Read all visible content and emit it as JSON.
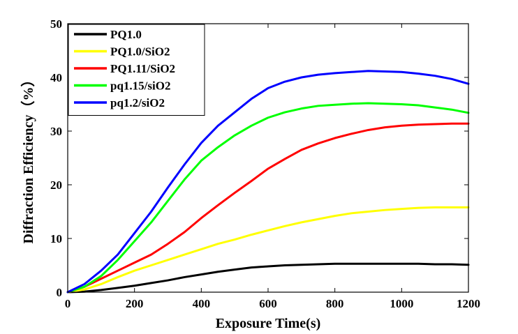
{
  "chart_data": {
    "type": "line",
    "title": "",
    "xlabel": "Exposure Time(s)",
    "ylabel": "Diffraction Efficiency（%）",
    "xlim": [
      0,
      1200
    ],
    "ylim": [
      0,
      50
    ],
    "xticks": [
      0,
      200,
      400,
      600,
      800,
      1000,
      1200
    ],
    "yticks": [
      0,
      10,
      20,
      30,
      40,
      50
    ],
    "grid": false,
    "legend_position": "top-left",
    "x": [
      0,
      50,
      100,
      150,
      200,
      250,
      300,
      350,
      400,
      450,
      500,
      550,
      600,
      650,
      700,
      750,
      800,
      850,
      900,
      950,
      1000,
      1050,
      1100,
      1150,
      1200
    ],
    "series": [
      {
        "name": "PQ1.0",
        "color": "#000000",
        "values": [
          0,
          0.1,
          0.4,
          0.8,
          1.2,
          1.7,
          2.2,
          2.8,
          3.3,
          3.8,
          4.2,
          4.6,
          4.8,
          5.0,
          5.1,
          5.2,
          5.3,
          5.3,
          5.3,
          5.3,
          5.3,
          5.3,
          5.2,
          5.2,
          5.1
        ]
      },
      {
        "name": "PQ1.0/SiO2",
        "color": "#ffff00",
        "values": [
          0,
          0.5,
          1.5,
          2.8,
          4.0,
          5.0,
          6.0,
          7.0,
          8.0,
          9.0,
          9.8,
          10.7,
          11.5,
          12.3,
          13.0,
          13.6,
          14.2,
          14.7,
          15.0,
          15.3,
          15.5,
          15.7,
          15.8,
          15.8,
          15.8
        ]
      },
      {
        "name": "PQ1.11/SiO2",
        "color": "#ff0000",
        "values": [
          0,
          1.0,
          2.5,
          4.0,
          5.5,
          7.0,
          9.0,
          11.2,
          13.8,
          16.2,
          18.5,
          20.7,
          23.0,
          24.8,
          26.5,
          27.7,
          28.7,
          29.5,
          30.2,
          30.7,
          31.0,
          31.2,
          31.3,
          31.4,
          31.4
        ]
      },
      {
        "name": "pq1.15/siO2",
        "color": "#00ff00",
        "values": [
          0,
          1.0,
          3.0,
          6.0,
          9.5,
          13.0,
          17.0,
          21.0,
          24.5,
          27.0,
          29.2,
          31.0,
          32.5,
          33.5,
          34.2,
          34.7,
          34.9,
          35.1,
          35.2,
          35.1,
          35.0,
          34.8,
          34.4,
          34.0,
          33.4
        ]
      },
      {
        "name": "pq1.2/siO2",
        "color": "#0000ff",
        "values": [
          0,
          1.5,
          4.0,
          7.0,
          11.0,
          15.0,
          19.5,
          23.8,
          27.8,
          31.0,
          33.5,
          36.0,
          38.0,
          39.2,
          40.0,
          40.5,
          40.8,
          41.0,
          41.2,
          41.1,
          41.0,
          40.7,
          40.3,
          39.7,
          38.8
        ]
      }
    ]
  }
}
